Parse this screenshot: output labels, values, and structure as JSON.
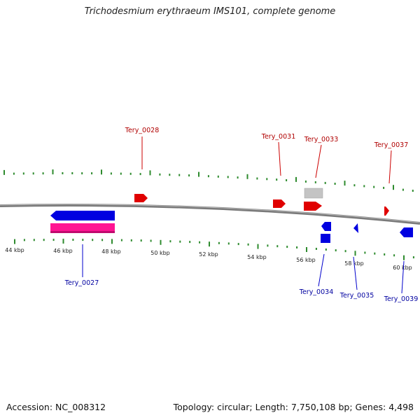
{
  "title": "Trichodesmium erythraeum IMS101, complete genome",
  "footer": {
    "accession": "Accession: NC_008312",
    "topology": "Topology: circular; Length: 7,750,108 bp; Genes: 4,498"
  },
  "colors": {
    "forward_strand": "#e00000",
    "reverse_strand": "#0000e0",
    "rna_gene": "#ff1493",
    "pseudo_gene": "#c0c0c0",
    "tick": "#2e8b2e",
    "backbone": "#7a7a7a",
    "forward_label": "#b00000",
    "reverse_label": "#0000a0",
    "scale_label": "#222222"
  },
  "scale_labels": [
    "44 kbp",
    "46 kbp",
    "48 kbp",
    "50 kbp",
    "52 kbp",
    "54 kbp",
    "56 kbp",
    "58 kbp",
    "60 kbp"
  ],
  "gene_labels": {
    "forward": [
      "Tery_0028",
      "Tery_0031",
      "Tery_0033",
      "Tery_0037"
    ],
    "reverse": [
      "Tery_0027",
      "Tery_0034",
      "Tery_0035",
      "Tery_0039"
    ]
  }
}
